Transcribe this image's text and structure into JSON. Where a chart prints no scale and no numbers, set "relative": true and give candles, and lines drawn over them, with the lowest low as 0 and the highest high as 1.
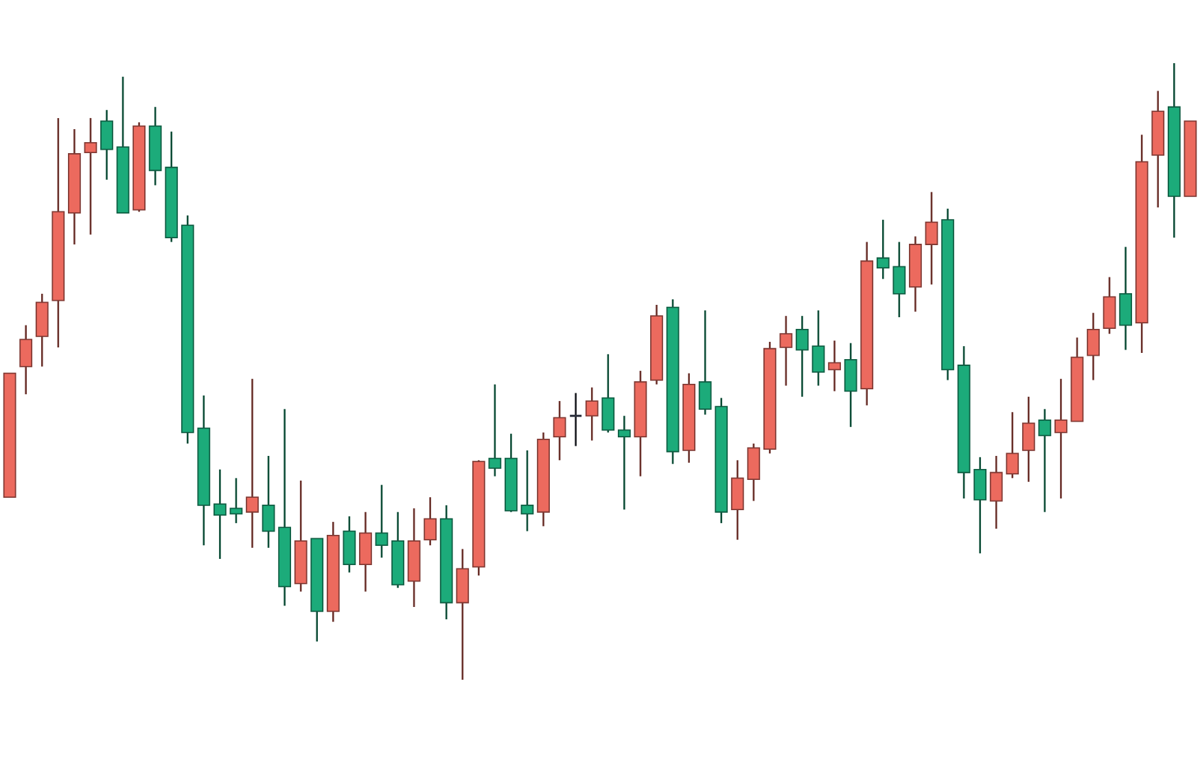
{
  "chart_data": {
    "type": "candlestick",
    "relative": true,
    "categories": [
      null,
      null,
      null,
      null,
      null,
      null,
      null,
      null,
      null,
      null,
      null,
      null,
      null,
      null,
      null,
      null,
      null,
      null,
      null,
      null,
      null,
      null,
      null,
      null,
      null,
      null,
      null,
      null,
      null,
      null,
      null,
      null,
      null,
      null,
      null,
      null,
      null,
      null,
      null,
      null,
      null,
      null,
      null,
      null,
      null,
      null,
      null,
      null,
      null,
      null,
      null,
      null,
      null,
      null,
      null,
      null,
      null,
      null,
      null,
      null,
      null,
      null,
      null,
      null,
      null,
      null,
      null,
      null,
      null,
      null,
      null,
      null,
      null,
      null
    ],
    "ohlc": [
      [
        0.296,
        0.497,
        0.296,
        0.497
      ],
      [
        0.508,
        0.575,
        0.463,
        0.552
      ],
      [
        0.557,
        0.626,
        0.508,
        0.612
      ],
      [
        0.615,
        0.911,
        0.539,
        0.759
      ],
      [
        0.757,
        0.893,
        0.706,
        0.853
      ],
      [
        0.855,
        0.911,
        0.722,
        0.871
      ],
      [
        0.906,
        0.924,
        0.811,
        0.86
      ],
      [
        0.864,
        0.978,
        0.757,
        0.757
      ],
      [
        0.762,
        0.904,
        0.759,
        0.898
      ],
      [
        0.898,
        0.929,
        0.802,
        0.826
      ],
      [
        0.831,
        0.889,
        0.71,
        0.717
      ],
      [
        0.737,
        0.753,
        0.383,
        0.401
      ],
      [
        0.408,
        0.461,
        0.218,
        0.283
      ],
      [
        0.285,
        0.341,
        0.196,
        0.267
      ],
      [
        0.278,
        0.327,
        0.254,
        0.269
      ],
      [
        0.272,
        0.488,
        0.214,
        0.296
      ],
      [
        0.283,
        0.363,
        0.214,
        0.241
      ],
      [
        0.247,
        0.439,
        0.12,
        0.151
      ],
      [
        0.156,
        0.323,
        0.143,
        0.225
      ],
      [
        0.229,
        0.229,
        0.062,
        0.111
      ],
      [
        0.111,
        0.256,
        0.094,
        0.234
      ],
      [
        0.241,
        0.265,
        0.174,
        0.187
      ],
      [
        0.187,
        0.272,
        0.143,
        0.238
      ],
      [
        0.238,
        0.316,
        0.198,
        0.218
      ],
      [
        0.225,
        0.272,
        0.149,
        0.154
      ],
      [
        0.16,
        0.278,
        0.118,
        0.225
      ],
      [
        0.227,
        0.296,
        0.218,
        0.261
      ],
      [
        0.261,
        0.283,
        0.098,
        0.125
      ],
      [
        0.125,
        0.212,
        0,
        0.18
      ],
      [
        0.183,
        0.356,
        0.169,
        0.354
      ],
      [
        0.359,
        0.479,
        0.33,
        0.343
      ],
      [
        0.359,
        0.399,
        0.272,
        0.274
      ],
      [
        0.283,
        0.372,
        0.241,
        0.269
      ],
      [
        0.272,
        0.401,
        0.249,
        0.39
      ],
      [
        0.394,
        0.452,
        0.356,
        0.425
      ],
      [
        0.428,
        0.465,
        0.379,
        0.428
      ],
      [
        0.428,
        0.474,
        0.388,
        0.452
      ],
      [
        0.457,
        0.528,
        0.401,
        0.405
      ],
      [
        0.405,
        0.428,
        0.276,
        0.394
      ],
      [
        0.394,
        0.501,
        0.33,
        0.483
      ],
      [
        0.486,
        0.608,
        0.479,
        0.59
      ],
      [
        0.604,
        0.617,
        0.35,
        0.37
      ],
      [
        0.372,
        0.497,
        0.352,
        0.479
      ],
      [
        0.483,
        0.599,
        0.43,
        0.439
      ],
      [
        0.443,
        0.457,
        0.254,
        0.272
      ],
      [
        0.276,
        0.356,
        0.227,
        0.327
      ],
      [
        0.325,
        0.383,
        0.29,
        0.376
      ],
      [
        0.374,
        0.548,
        0.367,
        0.537
      ],
      [
        0.539,
        0.59,
        0.477,
        0.561
      ],
      [
        0.568,
        0.59,
        0.459,
        0.535
      ],
      [
        0.541,
        0.599,
        0.477,
        0.499
      ],
      [
        0.503,
        0.55,
        0.468,
        0.514
      ],
      [
        0.519,
        0.546,
        0.41,
        0.468
      ],
      [
        0.472,
        0.71,
        0.445,
        0.679
      ],
      [
        0.684,
        0.746,
        0.65,
        0.668
      ],
      [
        0.67,
        0.71,
        0.588,
        0.626
      ],
      [
        0.637,
        0.719,
        0.597,
        0.706
      ],
      [
        0.706,
        0.791,
        0.641,
        0.742
      ],
      [
        0.746,
        0.764,
        0.486,
        0.503
      ],
      [
        0.51,
        0.541,
        0.294,
        0.336
      ],
      [
        0.341,
        0.361,
        0.205,
        0.292
      ],
      [
        0.29,
        0.363,
        0.245,
        0.336
      ],
      [
        0.334,
        0.434,
        0.327,
        0.367
      ],
      [
        0.372,
        0.459,
        0.321,
        0.416
      ],
      [
        0.421,
        0.439,
        0.272,
        0.396
      ],
      [
        0.401,
        0.488,
        0.294,
        0.421
      ],
      [
        0.419,
        0.555,
        0.419,
        0.523
      ],
      [
        0.526,
        0.595,
        0.486,
        0.568
      ],
      [
        0.57,
        0.653,
        0.561,
        0.621
      ],
      [
        0.626,
        0.702,
        0.535,
        0.575
      ],
      [
        0.579,
        0.884,
        0.53,
        0.84
      ],
      [
        0.851,
        0.955,
        0.766,
        0.922
      ],
      [
        0.929,
        1,
        0.717,
        0.784
      ],
      [
        0.784,
        0.906,
        0.784,
        0.906
      ]
    ],
    "colors": [
      "#ec6a5e",
      "#ec6a5e",
      "#ec6a5e",
      "#ec6a5e",
      "#ec6a5e",
      "#ec6a5e",
      "#1cab7a",
      "#1cab7a",
      "#ec6a5e",
      "#1cab7a",
      "#1cab7a",
      "#1cab7a",
      "#1cab7a",
      "#1cab7a",
      "#1cab7a",
      "#ec6a5e",
      "#1cab7a",
      "#1cab7a",
      "#ec6a5e",
      "#1cab7a",
      "#ec6a5e",
      "#1cab7a",
      "#ec6a5e",
      "#1cab7a",
      "#1cab7a",
      "#ec6a5e",
      "#ec6a5e",
      "#1cab7a",
      "#ec6a5e",
      "#ec6a5e",
      "#1cab7a",
      "#1cab7a",
      "#1cab7a",
      "#ec6a5e",
      "#ec6a5e",
      "#2f3340",
      "#ec6a5e",
      "#1cab7a",
      "#1cab7a",
      "#ec6a5e",
      "#ec6a5e",
      "#1cab7a",
      "#ec6a5e",
      "#1cab7a",
      "#1cab7a",
      "#ec6a5e",
      "#ec6a5e",
      "#ec6a5e",
      "#ec6a5e",
      "#1cab7a",
      "#1cab7a",
      "#ec6a5e",
      "#1cab7a",
      "#ec6a5e",
      "#1cab7a",
      "#1cab7a",
      "#ec6a5e",
      "#ec6a5e",
      "#1cab7a",
      "#1cab7a",
      "#1cab7a",
      "#ec6a5e",
      "#ec6a5e",
      "#ec6a5e",
      "#1cab7a",
      "#ec6a5e",
      "#ec6a5e",
      "#ec6a5e",
      "#ec6a5e",
      "#1cab7a",
      "#ec6a5e",
      "#ec6a5e",
      "#1cab7a",
      "#ec6a5e"
    ]
  }
}
